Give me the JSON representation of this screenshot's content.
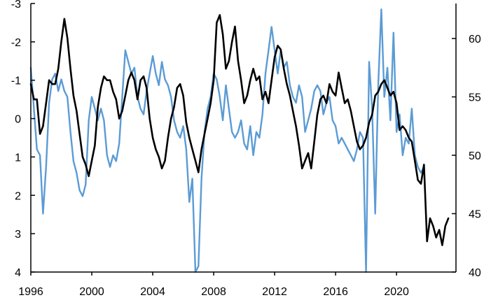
{
  "chart_data": {
    "type": "line",
    "title": "",
    "xlabel": "",
    "ylabel": "",
    "y2label": "",
    "grid": false,
    "legend": "none",
    "x_ticks": [
      "1996",
      "2000",
      "2004",
      "2008",
      "2012",
      "2016",
      "2020"
    ],
    "y_left": {
      "range": [
        -3,
        4
      ],
      "inverted": true,
      "ticks": [
        "-3",
        "-2",
        "-1",
        "0",
        "1",
        "2",
        "3",
        "4"
      ]
    },
    "y_right": {
      "range": [
        40,
        63
      ],
      "ticks": [
        "40",
        "45",
        "50",
        "55",
        "60"
      ]
    },
    "series": [
      {
        "axis": "left",
        "color": "#000000",
        "points": [
          [
            1996.0,
            -0.9
          ],
          [
            1996.2,
            -0.5
          ],
          [
            1996.4,
            -0.5
          ],
          [
            1996.6,
            0.4
          ],
          [
            1996.8,
            0.2
          ],
          [
            1997.0,
            -0.4
          ],
          [
            1997.2,
            -1.0
          ],
          [
            1997.4,
            -0.9
          ],
          [
            1997.6,
            -0.9
          ],
          [
            1997.8,
            -1.3
          ],
          [
            1998.0,
            -2.0
          ],
          [
            1998.2,
            -2.6
          ],
          [
            1998.4,
            -2.1
          ],
          [
            1998.6,
            -1.3
          ],
          [
            1998.8,
            -0.6
          ],
          [
            1999.0,
            -0.2
          ],
          [
            1999.2,
            0.4
          ],
          [
            1999.4,
            1.0
          ],
          [
            1999.6,
            1.2
          ],
          [
            1999.8,
            1.5
          ],
          [
            2000.0,
            1.1
          ],
          [
            2000.2,
            0.7
          ],
          [
            2000.4,
            -0.3
          ],
          [
            2000.6,
            -0.8
          ],
          [
            2000.8,
            -1.1
          ],
          [
            2001.0,
            -1.0
          ],
          [
            2001.2,
            -1.0
          ],
          [
            2001.4,
            -0.7
          ],
          [
            2001.6,
            -0.5
          ],
          [
            2001.8,
            0.0
          ],
          [
            2002.0,
            -0.2
          ],
          [
            2002.2,
            -0.6
          ],
          [
            2002.4,
            -1.0
          ],
          [
            2002.6,
            -1.2
          ],
          [
            2002.8,
            -1.0
          ],
          [
            2003.0,
            -0.5
          ],
          [
            2003.2,
            -1.0
          ],
          [
            2003.4,
            -1.1
          ],
          [
            2003.6,
            -0.8
          ],
          [
            2003.8,
            0.0
          ],
          [
            2004.0,
            0.5
          ],
          [
            2004.2,
            0.8
          ],
          [
            2004.4,
            1.0
          ],
          [
            2004.6,
            1.3
          ],
          [
            2004.8,
            1.1
          ],
          [
            2005.0,
            0.5
          ],
          [
            2005.2,
            0.0
          ],
          [
            2005.4,
            -0.3
          ],
          [
            2005.6,
            -0.8
          ],
          [
            2005.8,
            -0.9
          ],
          [
            2006.0,
            -0.6
          ],
          [
            2006.2,
            0.1
          ],
          [
            2006.4,
            0.5
          ],
          [
            2006.6,
            0.8
          ],
          [
            2006.8,
            1.1
          ],
          [
            2007.0,
            1.4
          ],
          [
            2007.2,
            0.8
          ],
          [
            2007.4,
            0.4
          ],
          [
            2007.6,
            0.0
          ],
          [
            2007.8,
            -0.4
          ],
          [
            2008.0,
            -1.0
          ],
          [
            2008.2,
            -2.5
          ],
          [
            2008.4,
            -2.7
          ],
          [
            2008.6,
            -2.2
          ],
          [
            2008.8,
            -1.3
          ],
          [
            2009.0,
            -1.5
          ],
          [
            2009.2,
            -2.0
          ],
          [
            2009.4,
            -2.4
          ],
          [
            2009.6,
            -1.5
          ],
          [
            2009.8,
            -1.0
          ],
          [
            2010.0,
            -0.4
          ],
          [
            2010.2,
            -0.6
          ],
          [
            2010.4,
            -1.0
          ],
          [
            2010.6,
            -1.3
          ],
          [
            2010.8,
            -1.0
          ],
          [
            2011.0,
            -1.1
          ],
          [
            2011.2,
            -0.5
          ],
          [
            2011.4,
            -0.7
          ],
          [
            2011.6,
            -0.4
          ],
          [
            2011.8,
            -1.0
          ],
          [
            2012.0,
            -1.6
          ],
          [
            2012.2,
            -1.9
          ],
          [
            2012.4,
            -1.8
          ],
          [
            2012.6,
            -1.3
          ],
          [
            2012.8,
            -0.9
          ],
          [
            2013.0,
            -0.6
          ],
          [
            2013.2,
            -0.2
          ],
          [
            2013.4,
            0.2
          ],
          [
            2013.6,
            0.7
          ],
          [
            2013.8,
            1.3
          ],
          [
            2014.0,
            1.1
          ],
          [
            2014.2,
            0.9
          ],
          [
            2014.4,
            1.3
          ],
          [
            2014.6,
            0.6
          ],
          [
            2014.8,
            -0.1
          ],
          [
            2015.0,
            -0.5
          ],
          [
            2015.2,
            -0.6
          ],
          [
            2015.4,
            -0.4
          ],
          [
            2015.6,
            -0.9
          ],
          [
            2015.8,
            -0.7
          ],
          [
            2016.0,
            -0.6
          ],
          [
            2016.2,
            -1.2
          ],
          [
            2016.4,
            -0.8
          ],
          [
            2016.6,
            -0.4
          ],
          [
            2016.8,
            -0.5
          ],
          [
            2017.0,
            -0.2
          ],
          [
            2017.2,
            0.2
          ],
          [
            2017.4,
            0.6
          ],
          [
            2017.6,
            0.8
          ],
          [
            2017.8,
            0.7
          ],
          [
            2018.0,
            0.5
          ],
          [
            2018.2,
            0.1
          ],
          [
            2018.4,
            -0.1
          ],
          [
            2018.6,
            -0.6
          ],
          [
            2018.8,
            -0.7
          ],
          [
            2019.0,
            -0.9
          ],
          [
            2019.2,
            -1.0
          ],
          [
            2019.4,
            -0.8
          ],
          [
            2019.6,
            -0.6
          ],
          [
            2019.8,
            -0.7
          ],
          [
            2020.0,
            -0.4
          ],
          [
            2020.2,
            0.3
          ],
          [
            2020.4,
            0.2
          ],
          [
            2020.6,
            0.3
          ],
          [
            2020.8,
            0.5
          ],
          [
            2021.0,
            0.6
          ],
          [
            2021.2,
            1.1
          ],
          [
            2021.4,
            1.6
          ],
          [
            2021.6,
            1.7
          ],
          [
            2021.8,
            1.2
          ],
          [
            2022.0,
            3.2
          ],
          [
            2022.2,
            2.6
          ],
          [
            2022.4,
            2.8
          ],
          [
            2022.6,
            3.1
          ],
          [
            2022.8,
            2.9
          ],
          [
            2023.0,
            3.3
          ],
          [
            2023.2,
            2.8
          ],
          [
            2023.4,
            2.6
          ]
        ]
      },
      {
        "axis": "right",
        "color": "#5b9bd5",
        "points": [
          [
            1996.0,
            57.5
          ],
          [
            1996.2,
            54.0
          ],
          [
            1996.4,
            50.5
          ],
          [
            1996.6,
            50.0
          ],
          [
            1996.8,
            45.0
          ],
          [
            1997.0,
            49.0
          ],
          [
            1997.2,
            54.5
          ],
          [
            1997.4,
            56.5
          ],
          [
            1997.6,
            57.0
          ],
          [
            1997.8,
            55.5
          ],
          [
            1998.0,
            56.5
          ],
          [
            1998.2,
            55.5
          ],
          [
            1998.4,
            55.0
          ],
          [
            1998.6,
            52.0
          ],
          [
            1998.8,
            49.5
          ],
          [
            1999.0,
            48.5
          ],
          [
            1999.2,
            47.0
          ],
          [
            1999.4,
            46.5
          ],
          [
            1999.6,
            47.5
          ],
          [
            1999.8,
            53.0
          ],
          [
            2000.0,
            55.0
          ],
          [
            2000.2,
            54.0
          ],
          [
            2000.4,
            53.0
          ],
          [
            2000.6,
            54.0
          ],
          [
            2000.8,
            53.0
          ],
          [
            2001.0,
            50.0
          ],
          [
            2001.2,
            49.0
          ],
          [
            2001.4,
            50.0
          ],
          [
            2001.6,
            49.5
          ],
          [
            2001.8,
            51.0
          ],
          [
            2002.0,
            55.0
          ],
          [
            2002.2,
            59.0
          ],
          [
            2002.4,
            58.0
          ],
          [
            2002.6,
            57.0
          ],
          [
            2002.8,
            57.5
          ],
          [
            2003.0,
            55.0
          ],
          [
            2003.2,
            54.0
          ],
          [
            2003.4,
            53.5
          ],
          [
            2003.6,
            55.5
          ],
          [
            2003.8,
            57.0
          ],
          [
            2004.0,
            58.5
          ],
          [
            2004.2,
            57.0
          ],
          [
            2004.4,
            56.0
          ],
          [
            2004.6,
            58.0
          ],
          [
            2004.8,
            56.5
          ],
          [
            2005.0,
            56.0
          ],
          [
            2005.2,
            55.0
          ],
          [
            2005.4,
            53.0
          ],
          [
            2005.6,
            52.0
          ],
          [
            2005.8,
            51.5
          ],
          [
            2006.0,
            52.5
          ],
          [
            2006.2,
            50.5
          ],
          [
            2006.4,
            46.0
          ],
          [
            2006.6,
            48.0
          ],
          [
            2006.8,
            40.0
          ],
          [
            2007.0,
            40.5
          ],
          [
            2007.2,
            48.0
          ],
          [
            2007.4,
            52.0
          ],
          [
            2007.6,
            54.0
          ],
          [
            2007.8,
            55.0
          ],
          [
            2008.0,
            57.0
          ],
          [
            2008.2,
            56.5
          ],
          [
            2008.4,
            55.0
          ],
          [
            2008.6,
            53.0
          ],
          [
            2008.8,
            56.0
          ],
          [
            2009.0,
            54.0
          ],
          [
            2009.2,
            52.0
          ],
          [
            2009.4,
            51.5
          ],
          [
            2009.6,
            52.0
          ],
          [
            2009.8,
            53.0
          ],
          [
            2010.0,
            51.0
          ],
          [
            2010.2,
            50.5
          ],
          [
            2010.4,
            52.5
          ],
          [
            2010.6,
            50.0
          ],
          [
            2010.8,
            52.0
          ],
          [
            2011.0,
            51.5
          ],
          [
            2011.2,
            53.5
          ],
          [
            2011.4,
            57.0
          ],
          [
            2011.6,
            59.0
          ],
          [
            2011.8,
            61.0
          ],
          [
            2012.0,
            59.0
          ],
          [
            2012.2,
            57.0
          ],
          [
            2012.4,
            59.0
          ],
          [
            2012.6,
            57.5
          ],
          [
            2012.8,
            58.0
          ],
          [
            2013.0,
            56.0
          ],
          [
            2013.2,
            55.0
          ],
          [
            2013.4,
            54.5
          ],
          [
            2013.6,
            56.0
          ],
          [
            2013.8,
            55.0
          ],
          [
            2014.0,
            52.0
          ],
          [
            2014.2,
            53.0
          ],
          [
            2014.4,
            54.0
          ],
          [
            2014.6,
            55.5
          ],
          [
            2014.8,
            56.0
          ],
          [
            2015.0,
            55.5
          ],
          [
            2015.2,
            53.5
          ],
          [
            2015.4,
            54.5
          ],
          [
            2015.6,
            55.0
          ],
          [
            2015.8,
            53.0
          ],
          [
            2016.0,
            52.5
          ],
          [
            2016.2,
            51.0
          ],
          [
            2016.4,
            51.5
          ],
          [
            2016.6,
            51.0
          ],
          [
            2016.8,
            50.5
          ],
          [
            2017.0,
            50.0
          ],
          [
            2017.2,
            49.5
          ],
          [
            2017.4,
            50.5
          ],
          [
            2017.6,
            52.0
          ],
          [
            2017.8,
            51.5
          ],
          [
            2018.0,
            40.0
          ],
          [
            2018.2,
            58.0
          ],
          [
            2018.4,
            54.0
          ],
          [
            2018.6,
            45.0
          ],
          [
            2018.8,
            56.0
          ],
          [
            2019.0,
            62.5
          ],
          [
            2019.2,
            55.0
          ],
          [
            2019.4,
            57.5
          ],
          [
            2019.6,
            53.0
          ],
          [
            2019.8,
            60.5
          ],
          [
            2020.0,
            52.0
          ],
          [
            2020.2,
            53.5
          ],
          [
            2020.4,
            50.0
          ],
          [
            2020.6,
            51.5
          ],
          [
            2020.8,
            51.0
          ],
          [
            2021.0,
            54.0
          ],
          [
            2021.2,
            50.0
          ],
          [
            2021.4,
            49.0
          ],
          [
            2021.6,
            48.5
          ],
          [
            2021.8,
            49.0
          ]
        ]
      }
    ]
  }
}
